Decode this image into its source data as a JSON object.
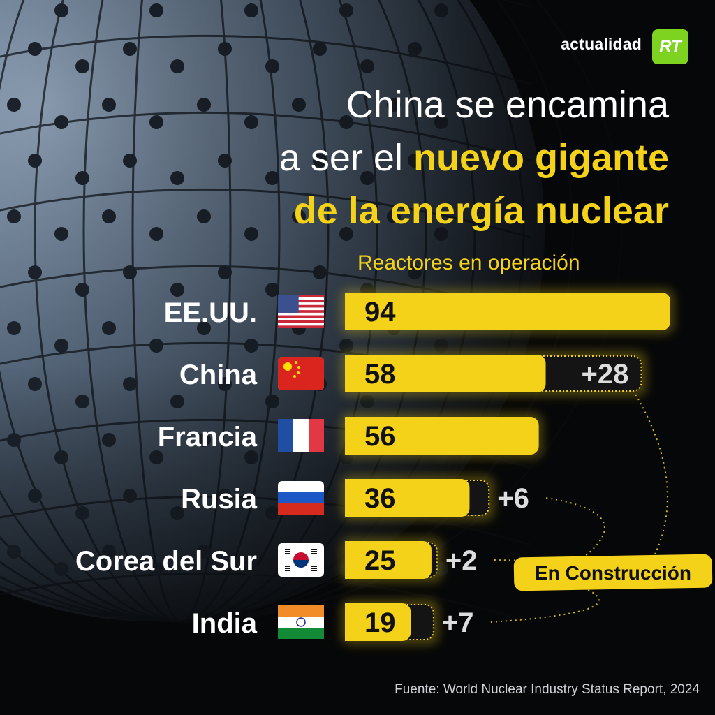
{
  "brand": {
    "name": "actualidad",
    "logo_text": "RT",
    "logo_color": "#7ed321"
  },
  "headline": {
    "line1": "China se encamina",
    "line2_white": "a ser el ",
    "line2_yellow": "nuevo gigante",
    "line3": "de la energía nuclear"
  },
  "colors": {
    "accent": "#f4d21a",
    "text": "#ffffff",
    "background": "#060708"
  },
  "chart_data": {
    "type": "bar",
    "orientation": "horizontal",
    "stacked": true,
    "title": "Reactores en operación",
    "categories": [
      "EE.UU.",
      "China",
      "Francia",
      "Rusia",
      "Corea del Sur",
      "India"
    ],
    "flags": [
      "flag-us-icon",
      "flag-china-icon",
      "flag-france-icon",
      "flag-russia-icon",
      "flag-south-korea-icon",
      "flag-india-icon"
    ],
    "series": [
      {
        "name": "Reactores en operación",
        "values": [
          94,
          58,
          56,
          36,
          25,
          19
        ],
        "labels": [
          "94",
          "58",
          "56",
          "36",
          "25",
          "19"
        ]
      },
      {
        "name": "En Construcción",
        "values": [
          0,
          28,
          0,
          6,
          2,
          7
        ],
        "labels": [
          "",
          "+28",
          "",
          "+6",
          "+2",
          "+7"
        ]
      }
    ],
    "xlim": [
      0,
      94
    ],
    "grid": false,
    "legend": "right"
  },
  "source": "Fuente: World Nuclear Industry Status Report, 2024"
}
